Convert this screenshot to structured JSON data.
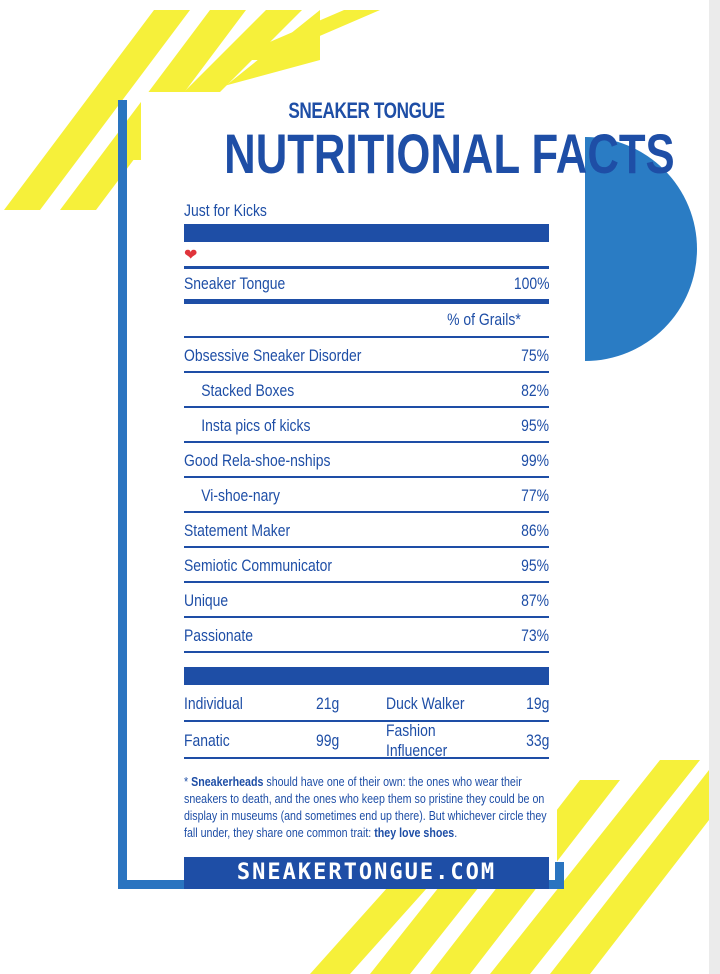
{
  "header": {
    "subtitle": "SNEAKER TONGUE",
    "title": "NUTRITIONAL FACTS",
    "serving": "Just for Kicks",
    "heart_icon": "heart-icon"
  },
  "total": {
    "label": "Sneaker Tongue",
    "value": "100%"
  },
  "grails_header": "% of Grails*",
  "rows": [
    {
      "label": "Obsessive Sneaker Disorder",
      "value": "75%",
      "indent": false
    },
    {
      "label": "Stacked Boxes",
      "value": "82%",
      "indent": true
    },
    {
      "label": "Insta pics of kicks",
      "value": "95%",
      "indent": true
    },
    {
      "label": "Good Rela-shoe-nships",
      "value": "99%",
      "indent": false
    },
    {
      "label": "Vi-shoe-nary",
      "value": "77%",
      "indent": true
    },
    {
      "label": "Statement Maker",
      "value": "86%",
      "indent": false
    },
    {
      "label": "Semiotic Communicator",
      "value": "95%",
      "indent": false
    },
    {
      "label": "Unique",
      "value": "87%",
      "indent": false
    },
    {
      "label": "Passionate",
      "value": "73%",
      "indent": false
    }
  ],
  "bottom": [
    {
      "a_label": "Individual",
      "a_value": "21g",
      "b_label": "Duck Walker",
      "b_value": "19g"
    },
    {
      "a_label": "Fanatic",
      "a_value": "99g",
      "b_label": "Fashion Influencer",
      "b_value": "33g"
    }
  ],
  "note": {
    "star": "* ",
    "bold_lead": "Sneakerheads",
    "text1": " should have one of their own: the ones who wear their sneakers to death, and the ones who keep them so pristine they could be on display in museums (and sometimes end up there). But whichever circle they fall under, they share one common trait: ",
    "bold_end": "they love shoes",
    "text2": "."
  },
  "url": "SNEAKERTONGUE.COM",
  "colors": {
    "blue": "#1e4ea6",
    "frame_blue": "#2a74c0",
    "yellow": "#f6f03a",
    "circle": "#2a7cc4"
  }
}
